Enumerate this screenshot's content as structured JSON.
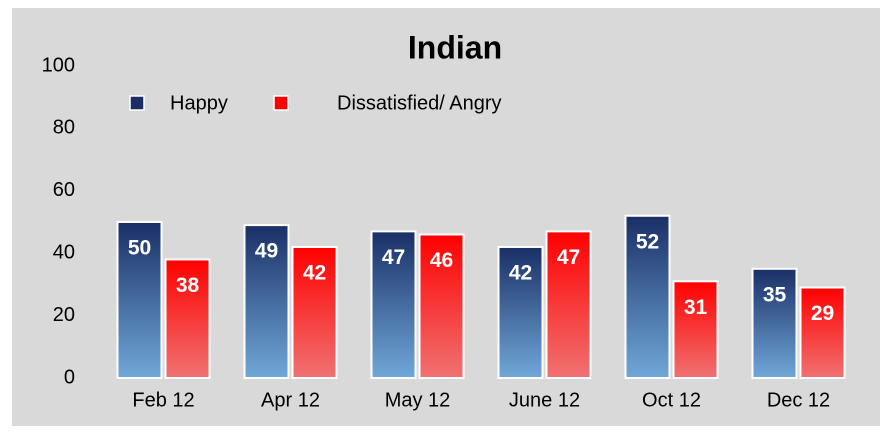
{
  "chart_data": {
    "type": "bar",
    "title": "Indian",
    "categories": [
      "Feb 12",
      "Apr 12",
      "May 12",
      "June 12",
      "Oct 12",
      "Dec 12"
    ],
    "series": [
      {
        "name": "Happy",
        "color": "#1a2f66",
        "values": [
          50,
          49,
          47,
          42,
          52,
          35
        ]
      },
      {
        "name": "Dissatisfied/ Angry",
        "color": "#ff0000",
        "values": [
          38,
          42,
          46,
          47,
          31,
          29
        ]
      }
    ],
    "ylim": [
      0,
      100
    ],
    "yticks": [
      0,
      20,
      40,
      60,
      80,
      100
    ],
    "grid": false
  }
}
